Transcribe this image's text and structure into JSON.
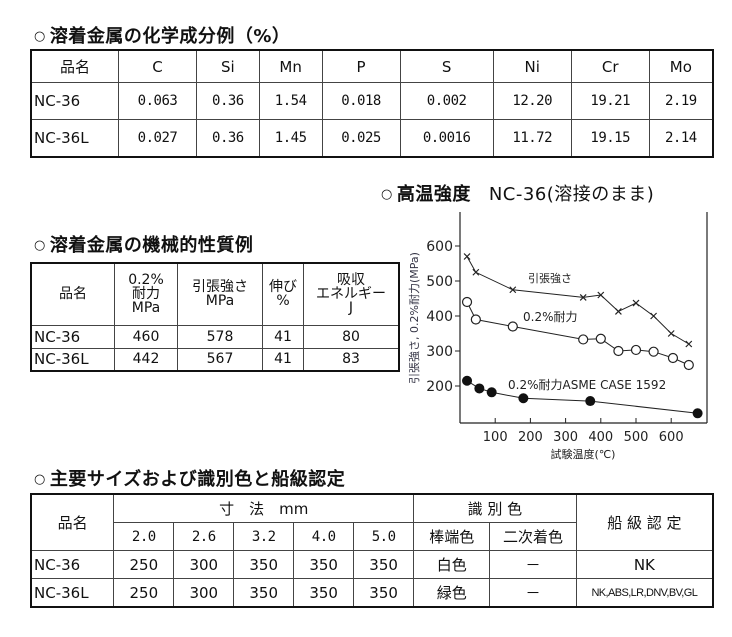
{
  "chemical": {
    "title": "溶着金属の化学成分例（%）",
    "bullet": "○",
    "headers": [
      "品名",
      "C",
      "Si",
      "Mn",
      "P",
      "S",
      "Ni",
      "Cr",
      "Mo"
    ],
    "rows": [
      [
        "NC-36",
        "0.063",
        "0.36",
        "1.54",
        "0.018",
        "0.002",
        "12.20",
        "19.21",
        "2.19"
      ],
      [
        "NC-36L",
        "0.027",
        "0.36",
        "1.45",
        "0.025",
        "0.0016",
        "11.72",
        "19.15",
        "2.14"
      ]
    ]
  },
  "mechanical": {
    "title": "溶着金属の機械的性質例",
    "bullet": "○",
    "headers": [
      {
        "l1": "品名"
      },
      {
        "l1": "0.2%",
        "l2": "耐力",
        "l3": "MPa"
      },
      {
        "l1": "引張強さ",
        "l2": "MPa"
      },
      {
        "l1": "伸び",
        "l2": "%"
      },
      {
        "l1": "吸収",
        "l2": "エネルギー",
        "l3": "J"
      }
    ],
    "rows": [
      [
        "NC-36",
        "460",
        "578",
        "41",
        "80"
      ],
      [
        "NC-36L",
        "442",
        "567",
        "41",
        "83"
      ]
    ]
  },
  "high_temp": {
    "bullet": "○",
    "title_bold": "高温強度",
    "title_rest": "NC-36(溶接のまま)"
  },
  "sizes": {
    "title": "主要サイズおよび識別色と船級認定",
    "bullet": "○",
    "header_name": "品名",
    "header_dim": "寸　法　mm",
    "header_color": "識 別 色",
    "header_class": "船 級 認 定",
    "dims": [
      "2.0",
      "2.6",
      "3.2",
      "4.0",
      "5.0"
    ],
    "color_subs": [
      "棒端色",
      "二次着色"
    ],
    "rows": [
      {
        "name": "NC-36",
        "lengths": [
          "250",
          "300",
          "350",
          "350",
          "350"
        ],
        "end_color": "白色",
        "secondary": "－",
        "class": "NK"
      },
      {
        "name": "NC-36L",
        "lengths": [
          "250",
          "300",
          "350",
          "350",
          "350"
        ],
        "end_color": "緑色",
        "secondary": "－",
        "class": "NK,ABS,LR,DNV,BV,GL"
      }
    ]
  },
  "chart_data": {
    "type": "line",
    "title": "高温強度 NC-36(溶接のまま)",
    "xlabel": "試験温度(℃)",
    "ylabel": "引張強さ, 0.2%耐力(MPa)",
    "xlim": [
      0,
      700
    ],
    "ylim": [
      100,
      700
    ],
    "xticks": [
      "100",
      "200",
      "300",
      "400",
      "500",
      "600"
    ],
    "yticks": [
      "200",
      "300",
      "400",
      "500",
      "600"
    ],
    "grid": false,
    "series": [
      {
        "name": "引張強さ",
        "marker": "x",
        "points": [
          [
            20,
            570
          ],
          [
            45,
            525
          ],
          [
            150,
            475
          ],
          [
            350,
            453
          ],
          [
            400,
            460
          ],
          [
            450,
            413
          ],
          [
            500,
            437
          ],
          [
            550,
            400
          ],
          [
            600,
            350
          ],
          [
            650,
            320
          ]
        ]
      },
      {
        "name": "0.2%耐力",
        "marker": "open-circle",
        "points": [
          [
            20,
            440
          ],
          [
            45,
            390
          ],
          [
            150,
            370
          ],
          [
            350,
            333
          ],
          [
            400,
            335
          ],
          [
            450,
            300
          ],
          [
            500,
            303
          ],
          [
            550,
            298
          ],
          [
            605,
            280
          ],
          [
            650,
            260
          ]
        ]
      },
      {
        "name": "0.2%耐力ASME CASE 1592",
        "marker": "filled-circle",
        "points": [
          [
            20,
            215
          ],
          [
            55,
            193
          ],
          [
            90,
            182
          ],
          [
            180,
            165
          ],
          [
            370,
            157
          ],
          [
            675,
            122
          ]
        ]
      }
    ],
    "annotations": [
      "引張強さ",
      "0.2%耐力",
      "0.2%耐力ASME CASE 1592"
    ]
  }
}
